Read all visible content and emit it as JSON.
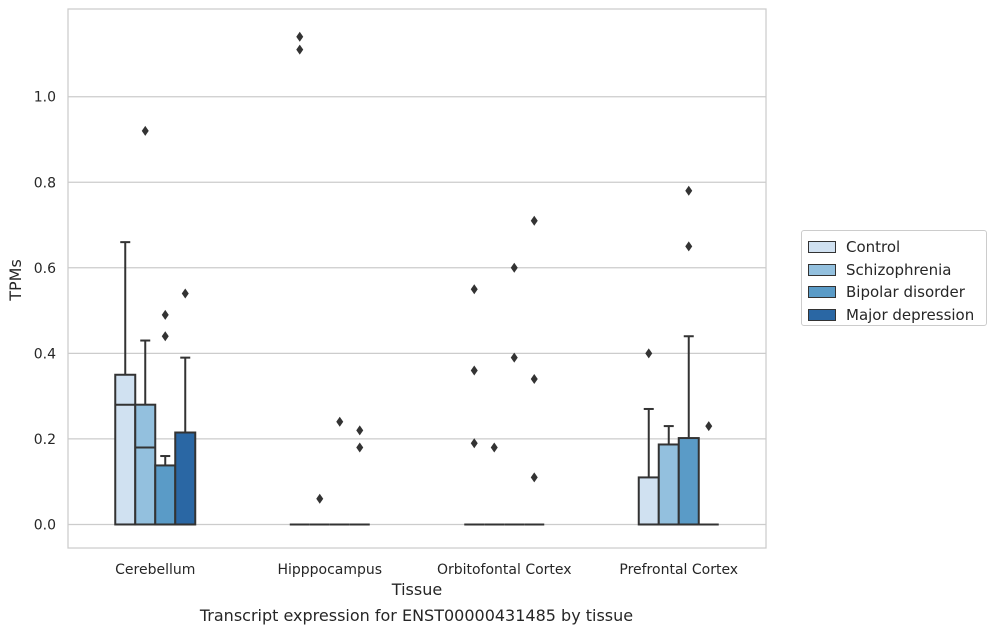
{
  "chart_data": {
    "type": "box",
    "title": "",
    "caption": "Transcript expression for ENST00000431485 by tissue",
    "xlabel": "Tissue",
    "ylabel": "TPMs",
    "ylim": [
      -0.055,
      1.205
    ],
    "yticks": [
      "0.0",
      "0.2",
      "0.4",
      "0.6",
      "0.8",
      "1.0"
    ],
    "grid": true,
    "legend_position": "right",
    "categories": [
      "Cerebellum",
      "Hipppocampus",
      "Orbitofontal Cortex",
      "Prefrontal Cortex"
    ],
    "series": [
      {
        "name": "Control",
        "color": "#d0e1f1",
        "boxes": [
          {
            "min": 0,
            "q1": 0,
            "median": 0.28,
            "q3": 0.35,
            "max": 0.66,
            "outliers": []
          },
          {
            "min": 0,
            "q1": 0,
            "median": 0,
            "q3": 0,
            "max": 0,
            "outliers": [
              1.14,
              1.11
            ]
          },
          {
            "min": 0,
            "q1": 0,
            "median": 0,
            "q3": 0,
            "max": 0,
            "outliers": [
              0.55,
              0.36,
              0.19
            ]
          },
          {
            "min": 0,
            "q1": 0,
            "median": 0,
            "q3": 0.11,
            "max": 0.27,
            "outliers": [
              0.4
            ]
          }
        ]
      },
      {
        "name": "Schizophrenia",
        "color": "#93c0de",
        "boxes": [
          {
            "min": 0,
            "q1": 0,
            "median": 0.18,
            "q3": 0.28,
            "max": 0.43,
            "outliers": [
              0.92
            ]
          },
          {
            "min": 0,
            "q1": 0,
            "median": 0,
            "q3": 0,
            "max": 0,
            "outliers": [
              0.06
            ]
          },
          {
            "min": 0,
            "q1": 0,
            "median": 0,
            "q3": 0,
            "max": 0,
            "outliers": [
              0.18
            ]
          },
          {
            "min": 0,
            "q1": 0,
            "median": 0,
            "q3": 0.187,
            "max": 0.23,
            "outliers": []
          }
        ]
      },
      {
        "name": "Bipolar disorder",
        "color": "#5a9bc7",
        "boxes": [
          {
            "min": 0,
            "q1": 0,
            "median": 0,
            "q3": 0.138,
            "max": 0.16,
            "outliers": [
              0.49,
              0.44
            ]
          },
          {
            "min": 0,
            "q1": 0,
            "median": 0,
            "q3": 0,
            "max": 0,
            "outliers": [
              0.24
            ]
          },
          {
            "min": 0,
            "q1": 0,
            "median": 0,
            "q3": 0,
            "max": 0,
            "outliers": [
              0.6,
              0.39
            ]
          },
          {
            "min": 0,
            "q1": 0,
            "median": 0,
            "q3": 0.202,
            "max": 0.44,
            "outliers": [
              0.78,
              0.65
            ]
          }
        ]
      },
      {
        "name": "Major depression",
        "color": "#2a67a4",
        "boxes": [
          {
            "min": 0,
            "q1": 0,
            "median": 0,
            "q3": 0.215,
            "max": 0.39,
            "outliers": [
              0.54
            ]
          },
          {
            "min": 0,
            "q1": 0,
            "median": 0,
            "q3": 0,
            "max": 0,
            "outliers": [
              0.22,
              0.18
            ]
          },
          {
            "min": 0,
            "q1": 0,
            "median": 0,
            "q3": 0,
            "max": 0,
            "outliers": [
              0.71,
              0.34,
              0.11
            ]
          },
          {
            "min": 0,
            "q1": 0,
            "median": 0,
            "q3": 0,
            "max": 0,
            "outliers": [
              0.23
            ]
          }
        ]
      }
    ]
  }
}
